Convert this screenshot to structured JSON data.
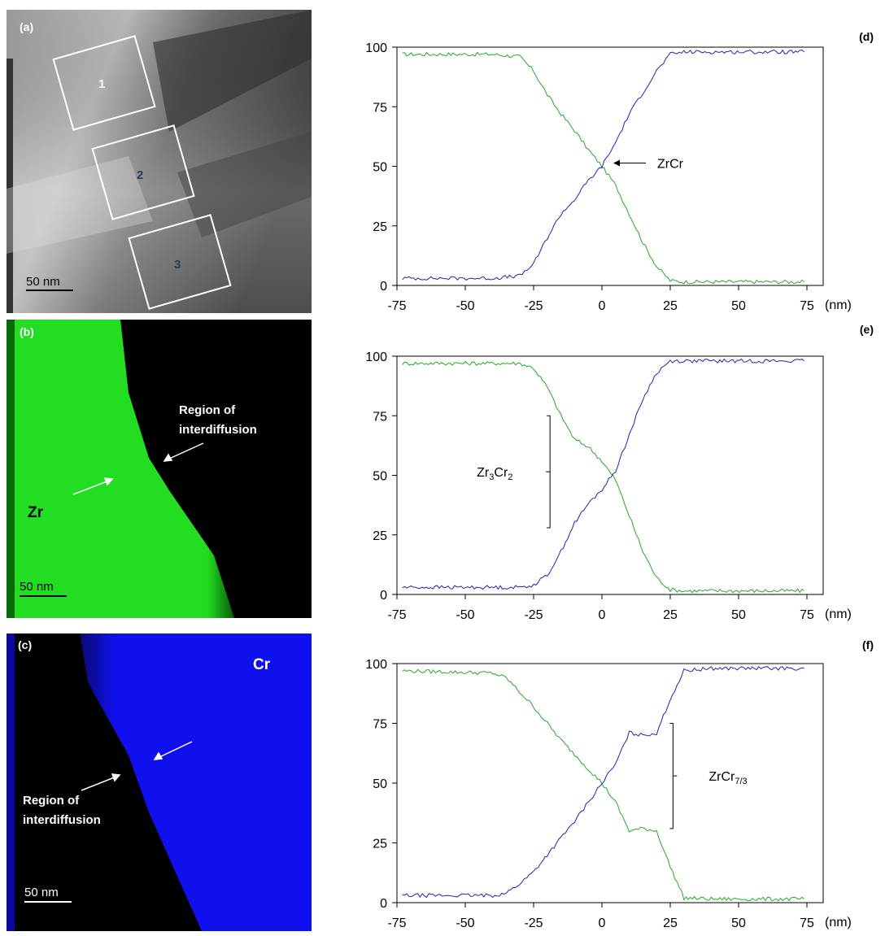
{
  "panels": {
    "a": {
      "label": "(a)",
      "scale_bar": "50 nm",
      "boxes": [
        "1",
        "2",
        "3"
      ]
    },
    "b": {
      "label": "(b)",
      "element": "Zr",
      "annotation_line1": "Region of",
      "annotation_line2": "interdiffusion",
      "scale_bar": "50 nm",
      "color": "#22dd22"
    },
    "c": {
      "label": "(c)",
      "element": "Cr",
      "annotation_line1": "Region of",
      "annotation_line2": "interdiffusion",
      "scale_bar": "50 nm",
      "color": "#1010ee"
    }
  },
  "chart_data": [
    {
      "type": "line",
      "panel_label": "(d)",
      "x_unit": "(nm)",
      "xlim": [
        -75,
        75
      ],
      "ylim": [
        0,
        100
      ],
      "xticks": [
        -75,
        -50,
        -25,
        0,
        25,
        50,
        75
      ],
      "yticks": [
        0,
        25,
        50,
        75,
        100
      ],
      "annotation": {
        "text": "ZrCr",
        "sub": "",
        "x": 0,
        "y": 50
      },
      "series": [
        {
          "color": "#22aa22",
          "x": [
            -73,
            -40,
            -30,
            -25,
            -20,
            -15,
            -10,
            -5,
            0,
            5,
            10,
            15,
            20,
            25,
            30,
            40,
            74
          ],
          "y": [
            97,
            97,
            96,
            90,
            80,
            72,
            65,
            57,
            50,
            42,
            30,
            18,
            8,
            2,
            1.5,
            1.5,
            1.5
          ]
        },
        {
          "color": "#2222aa",
          "x": [
            -73,
            -40,
            -30,
            -25,
            -20,
            -15,
            -10,
            -5,
            0,
            5,
            10,
            15,
            20,
            25,
            30,
            40,
            74
          ],
          "y": [
            3,
            3,
            4,
            9,
            20,
            30,
            36,
            44,
            50,
            60,
            72,
            81,
            90,
            97,
            98,
            98,
            98
          ]
        }
      ]
    },
    {
      "type": "line",
      "panel_label": "(e)",
      "x_unit": "(nm)",
      "xlim": [
        -75,
        75
      ],
      "ylim": [
        0,
        100
      ],
      "xticks": [
        -75,
        -50,
        -25,
        0,
        25,
        50,
        75
      ],
      "yticks": [
        0,
        25,
        50,
        75,
        100
      ],
      "annotation": {
        "text": "Zr3Cr2",
        "base": "Zr",
        "sub1": "3",
        "mid": "Cr",
        "sub2": "2"
      },
      "series": [
        {
          "color": "#22aa22",
          "x": [
            -73,
            -30,
            -25,
            -20,
            -15,
            -10,
            -5,
            0,
            5,
            10,
            15,
            20,
            25,
            30,
            40,
            74
          ],
          "y": [
            97,
            97,
            95,
            87,
            75,
            65,
            62,
            56,
            48,
            33,
            18,
            7,
            2,
            1.5,
            1.5,
            1.5
          ]
        },
        {
          "color": "#2222aa",
          "x": [
            -73,
            -30,
            -25,
            -20,
            -15,
            -10,
            -5,
            0,
            5,
            10,
            15,
            20,
            25,
            30,
            40,
            74
          ],
          "y": [
            3,
            3,
            4,
            8,
            18,
            30,
            38,
            44,
            52,
            67,
            82,
            93,
            98,
            98,
            98,
            98
          ]
        }
      ]
    },
    {
      "type": "line",
      "panel_label": "(f)",
      "x_unit": "(nm)",
      "xlim": [
        -75,
        75
      ],
      "ylim": [
        0,
        100
      ],
      "xticks": [
        -75,
        -50,
        -25,
        0,
        25,
        50,
        75
      ],
      "yticks": [
        0,
        25,
        50,
        75,
        100
      ],
      "annotation": {
        "text": "ZrCr7/3",
        "base": "ZrCr",
        "sub1": "7/3"
      },
      "series": [
        {
          "color": "#22aa22",
          "x": [
            -73,
            -40,
            -35,
            -30,
            -25,
            -20,
            -15,
            -10,
            -5,
            0,
            5,
            10,
            15,
            20,
            25,
            30,
            40,
            74
          ],
          "y": [
            97,
            96,
            94,
            88,
            82,
            75,
            68,
            62,
            56,
            50,
            42,
            30,
            31,
            30,
            15,
            2,
            1.5,
            1.5
          ]
        },
        {
          "color": "#2222aa",
          "x": [
            -73,
            -40,
            -35,
            -30,
            -25,
            -20,
            -15,
            -10,
            -5,
            0,
            5,
            10,
            15,
            20,
            25,
            30,
            40,
            74
          ],
          "y": [
            3,
            3,
            4,
            8,
            13,
            20,
            27,
            34,
            42,
            50,
            58,
            71,
            70,
            71,
            85,
            97,
            98,
            98
          ]
        }
      ]
    }
  ]
}
